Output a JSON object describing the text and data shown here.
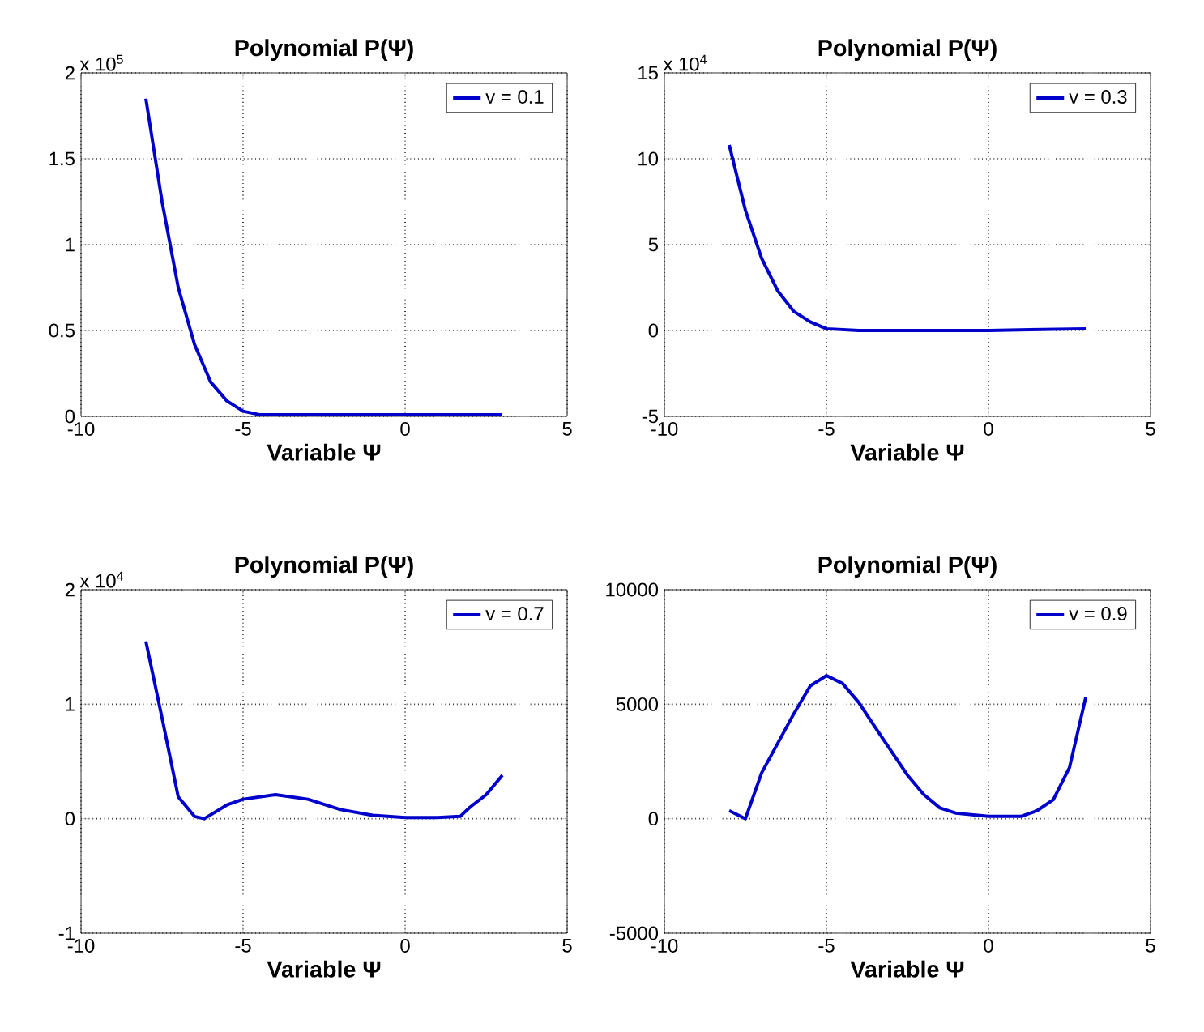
{
  "chart_data": [
    {
      "type": "line",
      "title": "Polynomial P(Ψ)",
      "xlabel": "Variable Ψ",
      "annotations": [
        "x 10$^{5}$"
      ],
      "xlim": [
        -10,
        5
      ],
      "ylim": [
        0,
        2
      ],
      "xticks": [
        -10,
        -5,
        0,
        5
      ],
      "yticks": [
        0,
        0.5,
        1,
        1.5,
        2
      ],
      "grid": true,
      "legend": "top right",
      "x": [
        -8,
        -7.5,
        -7,
        -6.5,
        -6,
        -5.5,
        -5,
        -4.5,
        -4,
        -2,
        0,
        3
      ],
      "series": [
        {
          "name": "v = 0.1",
          "color": "#0000cc",
          "values": [
            1.85,
            1.25,
            0.75,
            0.42,
            0.2,
            0.09,
            0.03,
            0.01,
            0.01,
            0.01,
            0.01,
            0.01
          ]
        }
      ]
    },
    {
      "type": "line",
      "title": "Polynomial P(Ψ)",
      "xlabel": "Variable Ψ",
      "annotations": [
        "x 10$^{4}$"
      ],
      "xlim": [
        -10,
        5
      ],
      "ylim": [
        -5,
        15
      ],
      "xticks": [
        -10,
        -5,
        0,
        5
      ],
      "yticks": [
        -5,
        0,
        5,
        10,
        15
      ],
      "grid": true,
      "legend": "top right",
      "x": [
        -8,
        -7.5,
        -7,
        -6.5,
        -6,
        -5.5,
        -5,
        -4,
        -2,
        0,
        3
      ],
      "series": [
        {
          "name": "v = 0.3",
          "color": "#0000cc",
          "values": [
            10.8,
            7,
            4.2,
            2.3,
            1.1,
            0.5,
            0.1,
            0,
            0,
            0,
            0.1
          ]
        }
      ]
    },
    {
      "type": "line",
      "title": "Polynomial P(Ψ)",
      "xlabel": "Variable Ψ",
      "annotations": [
        "x 10$^{4}$"
      ],
      "xlim": [
        -10,
        5
      ],
      "ylim": [
        -1,
        2
      ],
      "xticks": [
        -10,
        -5,
        0,
        5
      ],
      "yticks": [
        -1,
        0,
        1,
        2
      ],
      "grid": true,
      "legend": "top right",
      "x": [
        -8,
        -7.5,
        -7,
        -6.5,
        -6.2,
        -5.5,
        -5,
        -4,
        -3,
        -2,
        -1,
        0,
        1,
        1.7,
        2,
        2.5,
        3
      ],
      "series": [
        {
          "name": "v = 0.7",
          "color": "#0000cc",
          "values": [
            1.55,
            0.88,
            0.19,
            0.02,
            0,
            0.12,
            0.17,
            0.21,
            0.17,
            0.08,
            0.03,
            0.01,
            0.01,
            0.02,
            0.1,
            0.21,
            0.38
          ]
        }
      ]
    },
    {
      "type": "line",
      "title": "Polynomial P(Ψ)",
      "xlabel": "Variable Ψ",
      "xlim": [
        -10,
        5
      ],
      "ylim": [
        -5000,
        10000
      ],
      "xticks": [
        -10,
        -5,
        0,
        5
      ],
      "yticks": [
        -5000,
        0,
        5000,
        10000
      ],
      "grid": true,
      "legend": "top right",
      "x": [
        -8,
        -7.5,
        -7,
        -6.5,
        -6,
        -5.5,
        -5,
        -4.5,
        -4,
        -3.5,
        -3,
        -2.5,
        -2,
        -1.5,
        -1,
        0,
        1,
        1.5,
        2,
        2.5,
        3
      ],
      "series": [
        {
          "name": "v = 0.9",
          "color": "#0000cc",
          "values": [
            350,
            0,
            2000,
            3300,
            4600,
            5800,
            6250,
            5900,
            5070,
            4000,
            2950,
            1900,
            1060,
            470,
            240,
            100,
            100,
            350,
            830,
            2240,
            5300
          ]
        }
      ]
    }
  ]
}
